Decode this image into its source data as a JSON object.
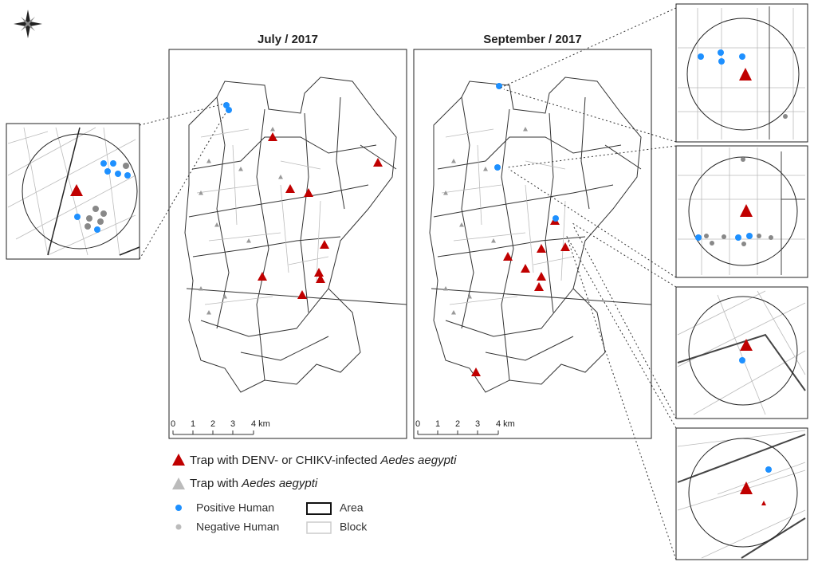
{
  "panels": [
    {
      "title": "July / 2017",
      "scale": [
        "0",
        "1",
        "2",
        "3",
        "4 km"
      ]
    },
    {
      "title": "September / 2017",
      "scale": [
        "0",
        "1",
        "2",
        "3",
        "4 km"
      ]
    }
  ],
  "legend": {
    "infected_trap": {
      "text": "Trap with DENV- or CHIKV-infected",
      "species": "Aedes aegypti"
    },
    "trap": {
      "text": "Trap with",
      "species": "Aedes aegypti"
    },
    "positive_human": "Positive Human",
    "negative_human": "Negative Human",
    "area": "Area",
    "block": "Block"
  }
}
